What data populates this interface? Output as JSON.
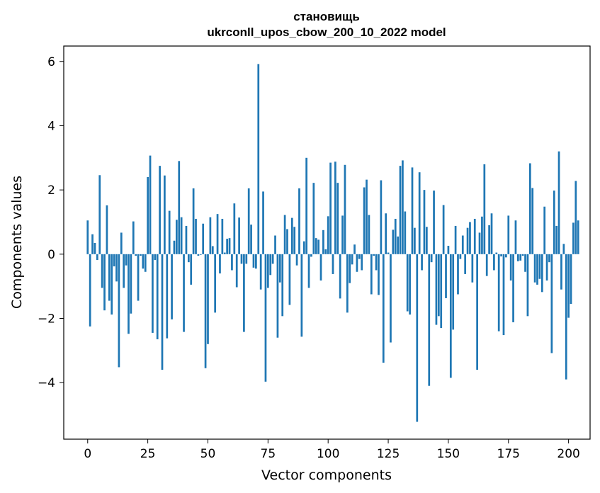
{
  "chart_data": {
    "type": "bar",
    "title_lines": [
      "становищь",
      "ukrconll_upos_cbow_200_10_2022 model"
    ],
    "xlabel": "Vector components",
    "ylabel": "Components values",
    "xlim": [
      -9.95,
      208.95
    ],
    "ylim": [
      -5.76,
      6.48
    ],
    "xticks": [
      0,
      25,
      50,
      75,
      100,
      125,
      150,
      175,
      200
    ],
    "yticks": [
      -4,
      -2,
      0,
      2,
      4,
      6
    ],
    "ytick_labels": [
      "−4",
      "−2",
      "0",
      "2",
      "4",
      "6"
    ],
    "bar_color": "#1f77b4",
    "grid": false,
    "legend": "none",
    "values": [
      1.05,
      -2.25,
      0.62,
      0.35,
      -0.18,
      2.46,
      -1.05,
      -1.75,
      1.52,
      -1.45,
      -1.88,
      -0.38,
      -0.85,
      -3.52,
      0.67,
      -1.05,
      -0.35,
      -2.48,
      -1.85,
      1.02,
      -0.05,
      -1.45,
      -0.05,
      -0.45,
      -0.55,
      2.4,
      3.07,
      -2.45,
      -0.18,
      -2.65,
      2.75,
      -3.6,
      2.45,
      -2.62,
      1.35,
      -2.03,
      0.42,
      1.07,
      2.9,
      1.15,
      -2.42,
      0.88,
      -0.25,
      -0.95,
      2.05,
      1.1,
      -0.05,
      -0.02,
      0.95,
      -3.55,
      -2.8,
      1.15,
      0.25,
      -1.82,
      1.25,
      -0.6,
      1.1,
      0.05,
      0.48,
      0.5,
      -0.5,
      1.58,
      -1.03,
      1.14,
      -0.3,
      -2.42,
      -0.3,
      2.05,
      0.92,
      -0.42,
      -0.45,
      5.92,
      -1.1,
      1.95,
      -3.97,
      -1.05,
      -0.65,
      -0.3,
      0.58,
      -2.6,
      -0.88,
      -1.93,
      1.22,
      0.78,
      -1.58,
      1.13,
      0.85,
      -0.35,
      2.05,
      -2.57,
      0.4,
      3.0,
      -1.05,
      -0.08,
      2.22,
      0.5,
      0.45,
      -0.82,
      0.75,
      0.15,
      1.18,
      2.85,
      -0.62,
      2.88,
      2.22,
      -1.38,
      1.2,
      2.78,
      -1.82,
      -0.9,
      -0.32,
      0.3,
      -0.55,
      -0.15,
      -0.5,
      2.08,
      2.32,
      1.22,
      -1.25,
      -0.05,
      -0.5,
      -1.27,
      2.3,
      -3.38,
      1.27,
      0.05,
      -2.75,
      0.76,
      1.1,
      0.55,
      2.75,
      2.92,
      1.33,
      -1.78,
      -1.88,
      2.7,
      0.82,
      -5.22,
      2.55,
      -0.5,
      2.0,
      0.85,
      -4.1,
      -0.25,
      1.98,
      -2.2,
      -1.93,
      -2.3,
      1.53,
      -1.37,
      0.26,
      -3.85,
      -2.35,
      0.88,
      -1.25,
      -0.15,
      0.58,
      -0.62,
      0.82,
      1.0,
      -0.88,
      1.1,
      -3.6,
      0.67,
      1.17,
      2.8,
      -0.68,
      0.9,
      1.27,
      -0.5,
      0.05,
      -2.4,
      -0.07,
      -2.52,
      -0.1,
      1.2,
      -0.82,
      -2.12,
      1.05,
      -0.22,
      -0.2,
      -0.05,
      -0.55,
      -1.93,
      2.83,
      2.06,
      -0.88,
      -0.95,
      -0.77,
      -1.18,
      1.48,
      -0.82,
      -0.25,
      -3.08,
      1.98,
      0.88,
      3.2,
      -1.1,
      0.32,
      -3.9,
      -1.98,
      -1.55,
      0.98,
      2.28,
      1.05
    ]
  }
}
